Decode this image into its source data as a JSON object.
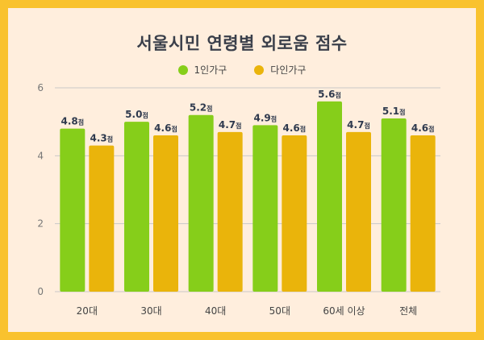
{
  "chart_data": {
    "type": "bar",
    "title": "서울시민 연령별 외로움 점수",
    "categories": [
      "20대",
      "30대",
      "40대",
      "50대",
      "60세 이상",
      "전체"
    ],
    "series": [
      {
        "name": "1인가구",
        "color": "#86CE1A",
        "values": [
          4.8,
          5.0,
          5.2,
          4.9,
          5.6,
          5.1
        ]
      },
      {
        "name": "다인가구",
        "color": "#EAB40B",
        "values": [
          4.3,
          4.6,
          4.7,
          4.6,
          4.7,
          4.6
        ]
      }
    ],
    "value_suffix": "점",
    "ylim": [
      0,
      6
    ],
    "yticks": [
      0,
      2,
      4,
      6
    ],
    "grid": true,
    "legend_position": "top-center"
  },
  "colors": {
    "background": "#FFEEDD",
    "border": "#F9C22E",
    "grid": "#C8C8C8",
    "label_text": "#2F3A4E"
  }
}
